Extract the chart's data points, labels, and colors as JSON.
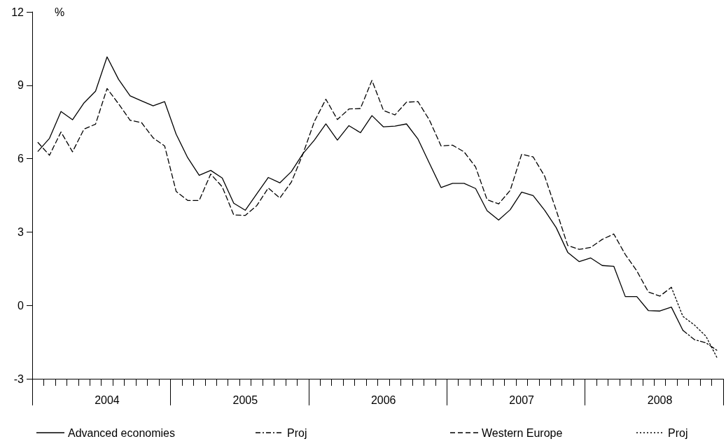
{
  "chart_data": {
    "type": "line",
    "ylabel": "%",
    "categories": [
      null,
      null,
      null,
      null,
      null,
      null,
      "2004",
      null,
      null,
      null,
      null,
      null,
      null,
      null,
      null,
      null,
      null,
      null,
      "2005",
      null,
      null,
      null,
      null,
      null,
      null,
      null,
      null,
      null,
      null,
      null,
      "2006",
      null,
      null,
      null,
      null,
      null,
      null,
      null,
      null,
      null,
      null,
      null,
      "2007",
      null,
      null,
      null,
      null,
      null,
      null,
      null,
      null,
      null,
      null,
      null,
      "2008",
      null,
      null,
      null,
      null,
      null
    ],
    "ylim": [
      -3,
      12
    ],
    "yticks": [
      -3,
      0,
      3,
      6,
      9,
      12
    ],
    "grid": false,
    "legend": "bottom",
    "marker": "none",
    "series": [
      {
        "name": "Advanced economies",
        "color": "#000000",
        "line_style": "solid",
        "values": [
          6.3,
          6.83,
          7.93,
          7.59,
          8.28,
          8.76,
          10.16,
          9.24,
          8.57,
          8.36,
          8.16,
          8.33,
          7.0,
          6.04,
          5.32,
          5.52,
          5.21,
          4.18,
          3.89,
          4.56,
          5.23,
          5.01,
          5.47,
          6.2,
          6.76,
          7.42,
          6.76,
          7.35,
          7.06,
          7.76,
          7.3,
          7.33,
          7.42,
          6.8,
          5.8,
          4.82,
          4.99,
          4.99,
          4.78,
          3.87,
          3.49,
          3.91,
          4.63,
          4.49,
          3.89,
          3.18,
          2.17,
          1.79,
          1.94,
          1.63,
          1.6,
          0.36,
          0.36,
          -0.21,
          -0.23,
          -0.07,
          -1.02,
          null,
          null,
          null
        ]
      },
      {
        "name": "Proj",
        "color": "#000000",
        "line_style": "dashdot",
        "values": [
          null,
          null,
          null,
          null,
          null,
          null,
          null,
          null,
          null,
          null,
          null,
          null,
          null,
          null,
          null,
          null,
          null,
          null,
          null,
          null,
          null,
          null,
          null,
          null,
          null,
          null,
          null,
          null,
          null,
          null,
          null,
          null,
          null,
          null,
          null,
          null,
          null,
          null,
          null,
          null,
          null,
          null,
          null,
          null,
          null,
          null,
          null,
          null,
          null,
          null,
          null,
          null,
          null,
          null,
          null,
          null,
          -1.02,
          -1.4,
          -1.53,
          -1.85
        ]
      },
      {
        "name": "Western Europe",
        "color": "#000000",
        "line_style": "dashed",
        "values": [
          6.66,
          6.14,
          7.09,
          6.28,
          7.21,
          7.41,
          8.87,
          8.24,
          7.57,
          7.47,
          6.85,
          6.52,
          4.66,
          4.29,
          4.29,
          5.37,
          4.85,
          3.7,
          3.68,
          4.08,
          4.8,
          4.39,
          5.04,
          6.18,
          7.52,
          8.43,
          7.6,
          8.03,
          8.05,
          9.2,
          7.97,
          7.79,
          8.31,
          8.33,
          7.57,
          6.52,
          6.55,
          6.28,
          5.66,
          4.32,
          4.15,
          4.7,
          6.18,
          6.07,
          5.28,
          3.89,
          2.45,
          2.29,
          2.37,
          2.7,
          2.92,
          2.08,
          1.41,
          0.55,
          0.38,
          0.74,
          null,
          null,
          null,
          null
        ]
      },
      {
        "name": "Proj",
        "color": "#000000",
        "line_style": "dotted",
        "values": [
          null,
          null,
          null,
          null,
          null,
          null,
          null,
          null,
          null,
          null,
          null,
          null,
          null,
          null,
          null,
          null,
          null,
          null,
          null,
          null,
          null,
          null,
          null,
          null,
          null,
          null,
          null,
          null,
          null,
          null,
          null,
          null,
          null,
          null,
          null,
          null,
          null,
          null,
          null,
          null,
          null,
          null,
          null,
          null,
          null,
          null,
          null,
          null,
          null,
          null,
          null,
          null,
          null,
          null,
          null,
          0.74,
          -0.45,
          -0.8,
          -1.26,
          -2.17
        ]
      }
    ]
  }
}
